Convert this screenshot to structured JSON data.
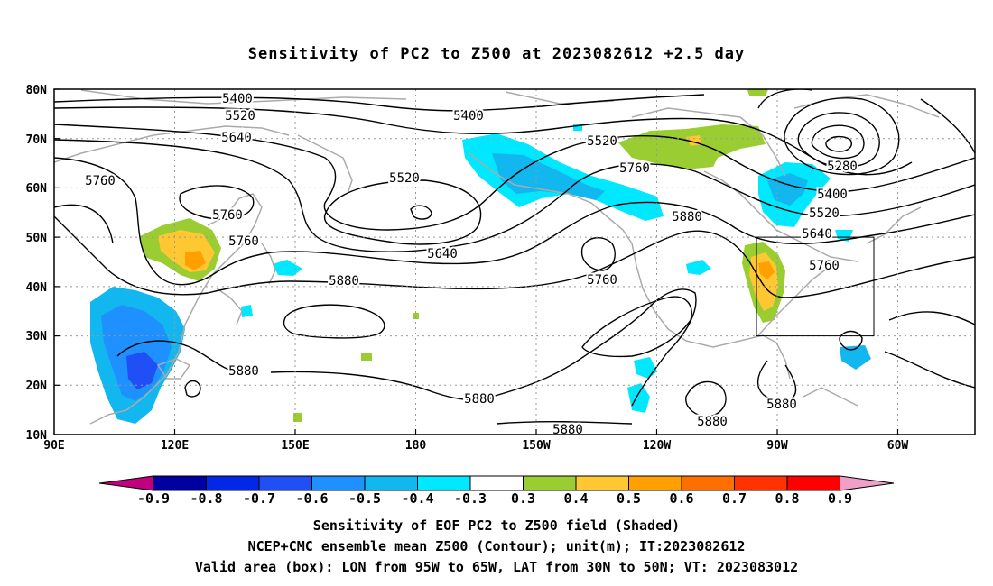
{
  "title": "Sensitivity of PC2 to Z500 at 2023082612 +2.5 day",
  "lat_labels": [
    "80N",
    "70N",
    "60N",
    "50N",
    "40N",
    "30N",
    "20N",
    "10N"
  ],
  "lon_labels": [
    "90E",
    "120E",
    "150E",
    "180",
    "150W",
    "120W",
    "90W",
    "60W"
  ],
  "contour_labels": [
    "5400",
    "5520",
    "5640",
    "5760",
    "5400",
    "5520",
    "5760",
    "5760",
    "5880",
    "5520",
    "5640",
    "5760",
    "5880",
    "5880",
    "5880",
    "5880",
    "5760",
    "5880",
    "5280",
    "5400",
    "5520",
    "5640",
    "5760",
    "5880"
  ],
  "box": {
    "lon_range": "95W to 65W",
    "lat_range": "30N to 50N"
  },
  "colorbar": {
    "labels": [
      "-0.9",
      "-0.8",
      "-0.7",
      "-0.6",
      "-0.5",
      "-0.4",
      "-0.3",
      "0.3",
      "0.4",
      "0.5",
      "0.6",
      "0.7",
      "0.8",
      "0.9"
    ],
    "colors": [
      "#c0007f",
      "#0000a0",
      "#0028e6",
      "#1f4ff5",
      "#1e90ff",
      "#12b7f0",
      "#00e8ff",
      "#ffffff",
      "#9acd32",
      "#ffc832",
      "#ffa000",
      "#ff6e00",
      "#ff3200",
      "#ff0000",
      "#f0a0c8"
    ]
  },
  "caption": {
    "line1": "Sensitivity of EOF PC2 to Z500 field (Shaded)",
    "line2": "NCEP+CMC ensemble mean Z500 (Contour); unit(m); IT:2023082612",
    "line3": "Valid area (box): LON from 95W to 65W, LAT from 30N to 50N; VT: 2023083012"
  }
}
